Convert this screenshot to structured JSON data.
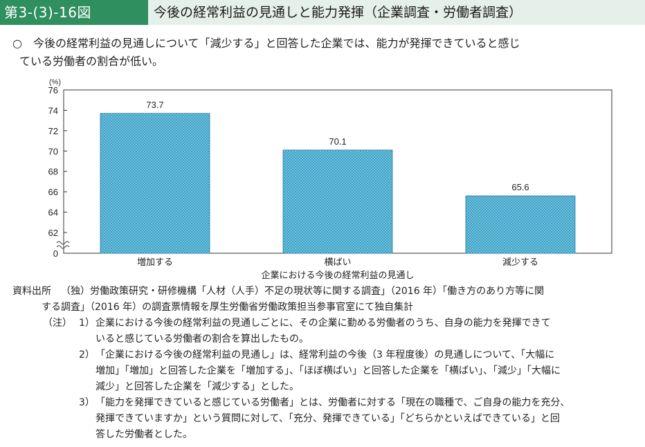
{
  "header": {
    "figure_number": "第3-(3)-16図",
    "title": "今後の経常利益の見通しと能力発揮（企業調査・労働者調査）"
  },
  "summary": {
    "mark": "○",
    "line1": "今後の経常利益の見通しについて「減少する」と回答した企業では、能力が発揮できていると感じ",
    "line2": "ている労働者の割合が低い。"
  },
  "chart_data": {
    "type": "bar",
    "categories": [
      "増加する",
      "横ばい",
      "減少する"
    ],
    "values": [
      73.7,
      70.1,
      65.6
    ],
    "data_labels": [
      "73.7",
      "70.1",
      "65.6"
    ],
    "xlabel": "企業における今後の経常利益の見通し",
    "ylabel": "(%)",
    "ylim": [
      60,
      76
    ],
    "yticks": [
      62,
      64,
      66,
      68,
      70,
      72,
      74,
      76
    ],
    "ytick_labels": [
      "62",
      "64",
      "66",
      "68",
      "70",
      "72",
      "74",
      "76"
    ],
    "axis_origin_label": "0",
    "axis_break": true,
    "grid": false,
    "bar_color": "#3aa3c8"
  },
  "source": {
    "head": "資料出所",
    "line1": "（独）労働政策研究・研修機構「人材（人手）不足の現状等に関する調査」（2016 年）「働き方のあり方等に関",
    "line2": "する調査」（2016 年）の調査票情報を厚生労働省労働政策担当参事官室にて独自集計"
  },
  "notes": {
    "head": "（注）",
    "items": [
      {
        "num": "1）",
        "lines": [
          "企業における今後の経常利益の見通しごとに、その企業に勤める労働者のうち、自身の能力を発揮できて",
          "いると感じている労働者の割合を算出したもの。"
        ]
      },
      {
        "num": "2）",
        "lines": [
          "「企業における今後の経常利益の見通し」は、経常利益の今後（3 年程度後）の見通しについて、「大幅に",
          "増加」「増加」と回答した企業を「増加する」、「ほぼ横ばい」と回答した企業を「横ばい」、「減少」「大幅に",
          "減少」と回答した企業を「減少する」とした。"
        ]
      },
      {
        "num": "3）",
        "lines": [
          "「能力を発揮できていると感じている労働者」とは、労働者に対する「現在の職種で、ご自身の能力を充分、",
          "発揮できていますか」という質問に対して、「充分、発揮できている」「どちらかといえばできている」と回",
          "答した労働者とした。"
        ]
      }
    ]
  }
}
